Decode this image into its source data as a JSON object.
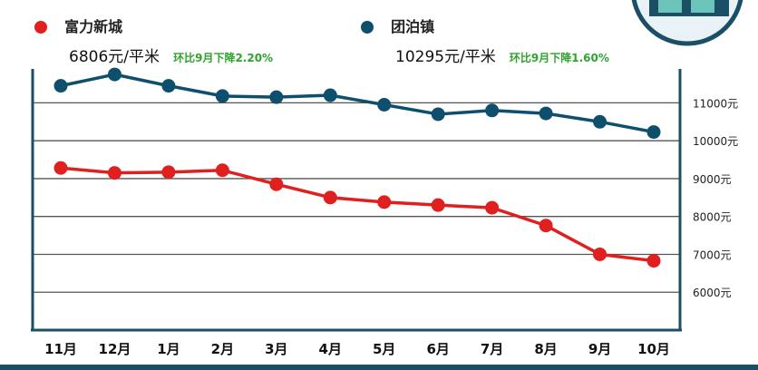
{
  "colors": {
    "series_a": "#e01f1f",
    "series_b": "#0f4f6e",
    "change_text": "#2ea42e",
    "axis": "#1a4f66",
    "grid": "#555555"
  },
  "legend": [
    {
      "name": "富力新城",
      "price": "6806元/平米",
      "change": "环比9月下降2.20%"
    },
    {
      "name": "团泊镇",
      "price": "10295元/平米",
      "change": "环比9月下降1.60%"
    }
  ],
  "chart_data": {
    "type": "line",
    "categories": [
      "11月",
      "12月",
      "1月",
      "2月",
      "3月",
      "4月",
      "5月",
      "6月",
      "7月",
      "8月",
      "9月",
      "10月"
    ],
    "yticks": [
      {
        "value": 6000,
        "label": "6000元"
      },
      {
        "value": 7000,
        "label": "7000元"
      },
      {
        "value": 8000,
        "label": "8000元"
      },
      {
        "value": 9000,
        "label": "9000元"
      },
      {
        "value": 10000,
        "label": "10000元"
      },
      {
        "value": 11000,
        "label": "11000元"
      }
    ],
    "ylim": [
      5000,
      11800
    ],
    "grid": true,
    "series": [
      {
        "name": "团泊镇",
        "values": [
          11450,
          11750,
          11450,
          11180,
          11150,
          11200,
          10950,
          10700,
          10800,
          10720,
          10500,
          10230
        ]
      },
      {
        "name": "富力新城",
        "values": [
          9280,
          9150,
          9170,
          9220,
          8850,
          8500,
          8380,
          8300,
          8230,
          7760,
          7000,
          6830
        ]
      }
    ]
  }
}
